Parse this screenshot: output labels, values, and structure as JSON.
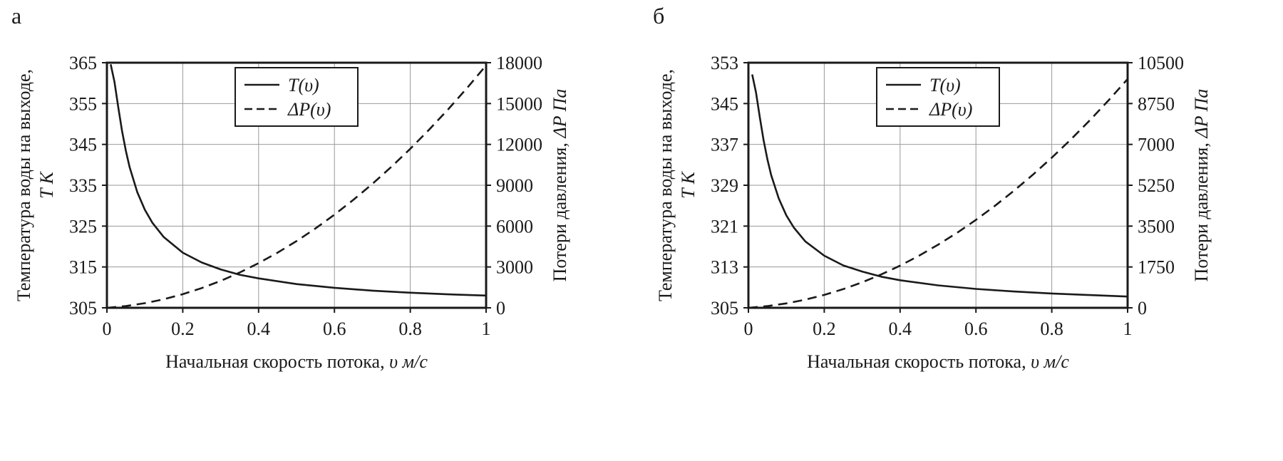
{
  "figure": {
    "background": "#ffffff",
    "line_color": "#1a1a1a",
    "grid_color": "#999999"
  },
  "panels": [
    {
      "label": "а"
    },
    {
      "label": "б"
    }
  ],
  "chart_data": [
    {
      "type": "line",
      "xlabel_regular": "Начальная скорость потока, ",
      "xlabel_italic": "υ м/с",
      "ylabel_left_line1": "Температура воды на выходе,",
      "ylabel_left_line2": "T К",
      "ylabel_right_regular": "Потери давления, ",
      "ylabel_right_italic": "ΔP Па",
      "x_range": [
        0,
        1
      ],
      "x_ticks": [
        "0",
        "0.2",
        "0.4",
        "0.6",
        "0.8",
        "1"
      ],
      "y_left_range": [
        305,
        365
      ],
      "y_left_ticks": [
        "305",
        "315",
        "325",
        "335",
        "345",
        "355",
        "365"
      ],
      "y_right_range": [
        0,
        18000
      ],
      "y_right_ticks": [
        "0",
        "3000",
        "6000",
        "9000",
        "12000",
        "15000",
        "18000"
      ],
      "grid": true,
      "legend_position": "top-center",
      "legend": [
        {
          "label": "T(υ)",
          "style": "solid"
        },
        {
          "label": "ΔP(υ)",
          "style": "dashed"
        }
      ],
      "series": [
        {
          "name": "T(υ)",
          "axis": "left",
          "style": "solid",
          "x": [
            0.01,
            0.02,
            0.03,
            0.04,
            0.05,
            0.06,
            0.08,
            0.1,
            0.12,
            0.15,
            0.2,
            0.25,
            0.3,
            0.35,
            0.4,
            0.5,
            0.6,
            0.7,
            0.8,
            0.9,
            1.0
          ],
          "y": [
            364.6,
            360.3,
            354.0,
            348.2,
            343.4,
            339.4,
            333.3,
            329.0,
            325.8,
            322.3,
            318.5,
            316.1,
            314.4,
            313.1,
            312.2,
            310.8,
            309.9,
            309.2,
            308.7,
            308.3,
            308.0
          ]
        },
        {
          "name": "ΔP(υ)",
          "axis": "right",
          "style": "dashed",
          "x": [
            0,
            0.05,
            0.1,
            0.15,
            0.2,
            0.25,
            0.3,
            0.35,
            0.4,
            0.45,
            0.5,
            0.55,
            0.6,
            0.65,
            0.7,
            0.75,
            0.8,
            0.85,
            0.9,
            0.95,
            1.0
          ],
          "y": [
            0,
            130,
            340,
            630,
            1000,
            1450,
            1980,
            2590,
            3280,
            4050,
            4900,
            5830,
            6840,
            7930,
            9100,
            10350,
            11680,
            13090,
            14580,
            16150,
            17800
          ]
        }
      ]
    },
    {
      "type": "line",
      "xlabel_regular": "Начальная скорость потока, ",
      "xlabel_italic": "υ м/с",
      "ylabel_left_line1": "Температура воды на выходе,",
      "ylabel_left_line2": "T К",
      "ylabel_right_regular": "Потери давления, ",
      "ylabel_right_italic": "ΔP Па",
      "x_range": [
        0,
        1
      ],
      "x_ticks": [
        "0",
        "0.2",
        "0.4",
        "0.6",
        "0.8",
        "1"
      ],
      "y_left_range": [
        305,
        353
      ],
      "y_left_ticks": [
        "305",
        "313",
        "321",
        "329",
        "337",
        "345",
        "353"
      ],
      "y_right_range": [
        0,
        10500
      ],
      "y_right_ticks": [
        "0",
        "1750",
        "3500",
        "5250",
        "7000",
        "8750",
        "10500"
      ],
      "grid": true,
      "legend_position": "top-center",
      "legend": [
        {
          "label": "T(υ)",
          "style": "solid"
        },
        {
          "label": "ΔP(υ)",
          "style": "dashed"
        }
      ],
      "series": [
        {
          "name": "T(υ)",
          "axis": "left",
          "style": "solid",
          "x": [
            0.01,
            0.02,
            0.03,
            0.04,
            0.05,
            0.06,
            0.08,
            0.1,
            0.12,
            0.15,
            0.2,
            0.25,
            0.3,
            0.35,
            0.4,
            0.5,
            0.6,
            0.7,
            0.8,
            0.9,
            1.0
          ],
          "y": [
            350.7,
            347.2,
            342.3,
            337.8,
            334.1,
            331.0,
            326.4,
            323.1,
            320.7,
            318.0,
            315.2,
            313.3,
            312.1,
            311.1,
            310.4,
            309.4,
            308.7,
            308.2,
            307.8,
            307.5,
            307.2
          ]
        },
        {
          "name": "ΔP(υ)",
          "axis": "right",
          "style": "dashed",
          "x": [
            0,
            0.05,
            0.1,
            0.15,
            0.2,
            0.25,
            0.3,
            0.35,
            0.4,
            0.45,
            0.5,
            0.55,
            0.6,
            0.65,
            0.7,
            0.75,
            0.8,
            0.85,
            0.9,
            0.95,
            1.0
          ],
          "y": [
            0,
            72,
            188,
            348,
            552,
            800,
            1092,
            1428,
            1808,
            2232,
            2700,
            3212,
            3768,
            4368,
            5012,
            5700,
            6432,
            7208,
            8028,
            8892,
            9800
          ]
        }
      ]
    }
  ]
}
